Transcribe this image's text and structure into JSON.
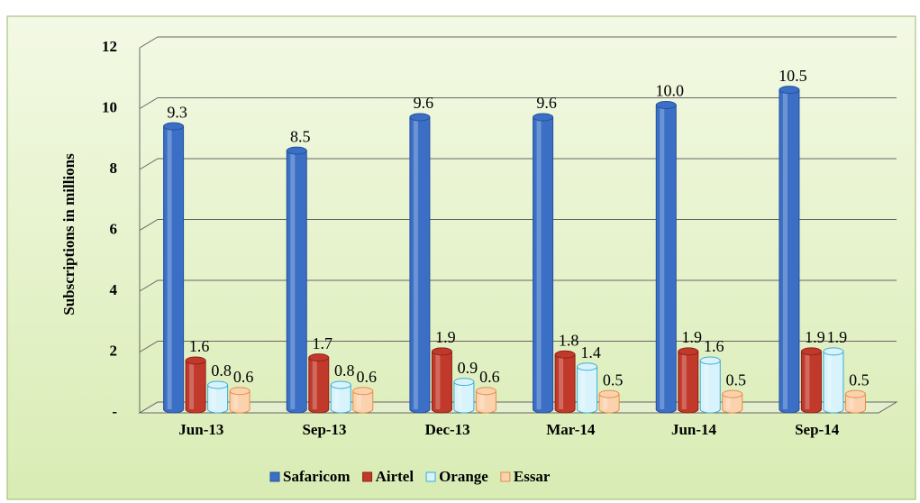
{
  "chart_data": {
    "type": "bar",
    "ylabel": "Subscriptions in millions",
    "categories": [
      "Jun-13",
      "Sep-13",
      "Dec-13",
      "Mar-14",
      "Jun-14",
      "Sep-14"
    ],
    "series": [
      {
        "name": "Safaricom",
        "color": "#3b6fc6",
        "values": [
          9.3,
          8.5,
          9.6,
          9.6,
          10,
          10.5
        ],
        "value_labels": [
          "9.3",
          "8.5",
          "9.6",
          "9.6",
          "10.0",
          "10.5"
        ]
      },
      {
        "name": "Airtel",
        "color": "#c0392b",
        "values": [
          1.6,
          1.7,
          1.9,
          1.8,
          1.9,
          1.9
        ]
      },
      {
        "name": "Orange",
        "color": "#d8f3fb",
        "values": [
          0.8,
          0.8,
          0.9,
          1.4,
          1.6,
          1.9
        ]
      },
      {
        "name": "Essar",
        "color": "#fbd2ae",
        "values": [
          0.6,
          0.6,
          0.6,
          0.5,
          0.5,
          0.5
        ]
      }
    ],
    "ylim": [
      0,
      12
    ],
    "yticks": [
      {
        "value": 0,
        "label": "-"
      },
      2,
      4,
      6,
      8,
      10,
      12
    ],
    "grid": true,
    "legend": "bottom"
  }
}
